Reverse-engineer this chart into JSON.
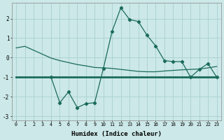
{
  "x": [
    0,
    1,
    2,
    3,
    4,
    5,
    6,
    7,
    8,
    9,
    10,
    11,
    12,
    13,
    14,
    15,
    16,
    17,
    18,
    19,
    20,
    21,
    22,
    23
  ],
  "line1": [
    0.5,
    0.58,
    0.38,
    0.18,
    -0.02,
    -0.15,
    -0.25,
    -0.35,
    -0.42,
    -0.5,
    -0.52,
    -0.55,
    -0.6,
    -0.65,
    -0.7,
    -0.72,
    -0.72,
    -0.68,
    -0.65,
    -0.62,
    -0.6,
    -0.58,
    -0.52,
    -0.45
  ],
  "line2_x": [
    4,
    5,
    6,
    7,
    8,
    9,
    10,
    11,
    12,
    13,
    14,
    15,
    16,
    17,
    18,
    19,
    20,
    21,
    22,
    23
  ],
  "line2_y": [
    -1.0,
    -2.3,
    -1.75,
    -2.55,
    -2.35,
    -2.3,
    -0.55,
    1.35,
    2.55,
    1.95,
    1.85,
    1.15,
    0.6,
    -0.15,
    -0.2,
    -0.2,
    -1.0,
    -0.6,
    -0.3,
    -1.0
  ],
  "line3": [
    -1.0,
    -1.0,
    -1.0,
    -1.0,
    -1.0,
    -1.0,
    -1.0,
    -1.0,
    -1.0,
    -1.0,
    -1.0,
    -1.0,
    -1.0,
    -1.0,
    -1.0,
    -1.0,
    -1.0,
    -1.0,
    -1.0,
    -1.0,
    -1.0,
    -1.0,
    -1.0,
    -1.0
  ],
  "line_color": "#1a6b5a",
  "bg_color": "#cce8e8",
  "grid_color": "#aad0d0",
  "xlabel": "Humidex (Indice chaleur)",
  "ylim": [
    -3.2,
    2.8
  ],
  "xlim": [
    -0.5,
    23.5
  ],
  "yticks": [
    -3,
    -2,
    -1,
    0,
    1,
    2
  ],
  "xticks": [
    0,
    1,
    2,
    3,
    4,
    5,
    6,
    7,
    8,
    9,
    10,
    11,
    12,
    13,
    14,
    15,
    16,
    17,
    18,
    19,
    20,
    21,
    22,
    23
  ],
  "marker": "D",
  "markersize": 2.2,
  "linewidth": 0.9,
  "line3_linewidth": 2.0
}
